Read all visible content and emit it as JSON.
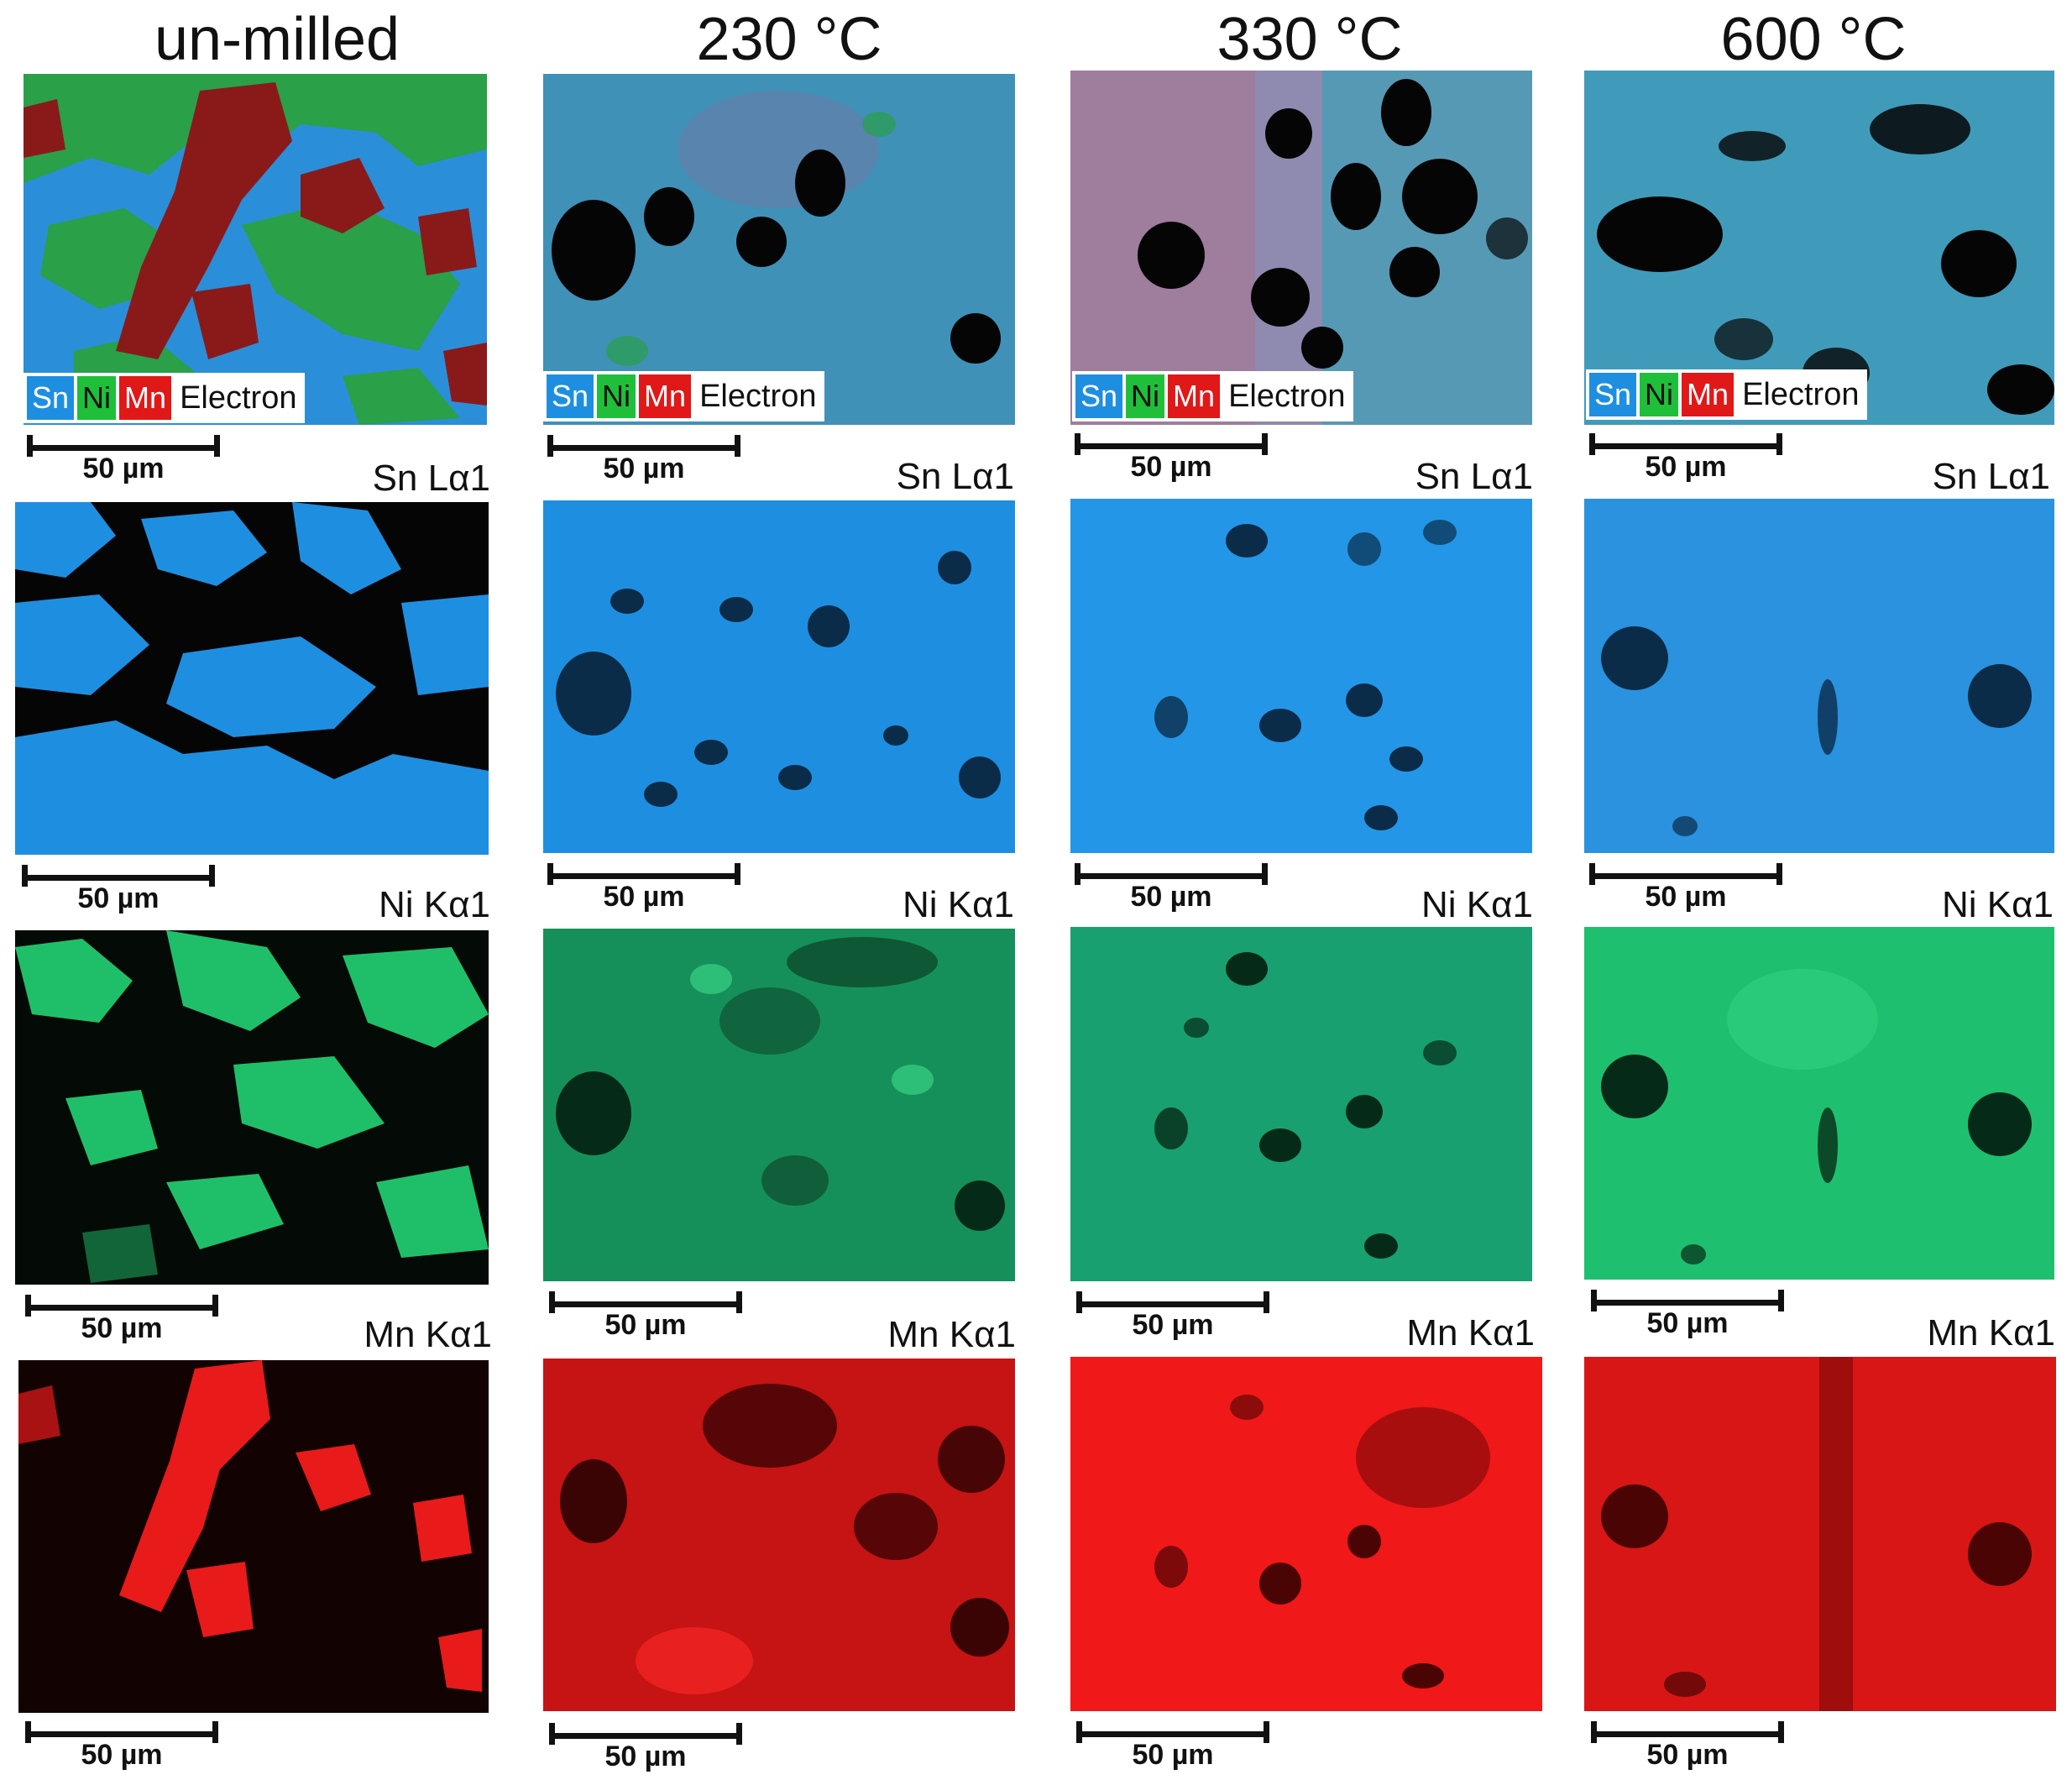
{
  "columns": [
    {
      "title": "un-milled"
    },
    {
      "title": "230 °C"
    },
    {
      "title": "330 °C"
    },
    {
      "title": "600 °C"
    }
  ],
  "legend": {
    "items": [
      {
        "label": "Sn",
        "color": "#1e8fe0"
      },
      {
        "label": "Ni",
        "color": "#1fbf3a"
      },
      {
        "label": "Mn",
        "color": "#e01818"
      }
    ],
    "electron_label": "Electron"
  },
  "row_labels": {
    "sn": "Sn Lα1",
    "ni": "Ni Kα1",
    "mn": "Mn Kα1"
  },
  "scale_bar_label": "50 µm",
  "colors": {
    "sn": "#1e8fe0",
    "ni": "#1fbf6a",
    "mn": "#e81a1a",
    "dark": "#050505",
    "composite_bg": "#3f92c8"
  }
}
